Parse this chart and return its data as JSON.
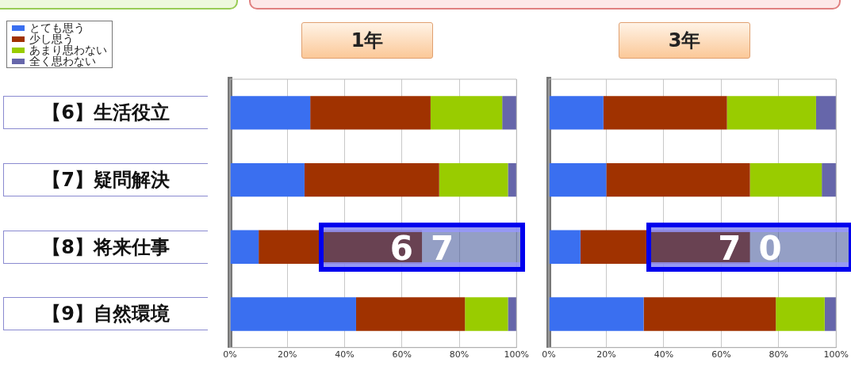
{
  "chart_data": [
    {
      "type": "bar",
      "title": "1年",
      "orientation": "horizontal",
      "stacked": true,
      "legend": "top left",
      "grid": "x",
      "categories": [
        "【6】生活役立",
        "【7】疑問解決",
        "【8】将来仕事",
        "【9】自然環境"
      ],
      "series": [
        {
          "name": "とても思う",
          "color": "#3a6ff0",
          "values": [
            28,
            26,
            10,
            44
          ]
        },
        {
          "name": "少し思う",
          "color": "#a03200",
          "values": [
            42,
            47,
            57,
            38
          ]
        },
        {
          "name": "あまり思わない",
          "color": "#99cc00",
          "values": [
            25,
            24,
            null,
            15
          ]
        },
        {
          "name": "全く思わない",
          "color": "#6666aa",
          "values": [
            5,
            3,
            null,
            3
          ]
        }
      ],
      "xlim": [
        0,
        100
      ],
      "xticks": [
        {
          "value": 0,
          "label": "0%"
        },
        {
          "value": 20,
          "label": "20%"
        },
        {
          "value": 40,
          "label": "40%"
        },
        {
          "value": 60,
          "label": "60%"
        },
        {
          "value": 80,
          "label": "80%"
        },
        {
          "value": 100,
          "label": "100%"
        }
      ],
      "annotations": [
        {
          "text": "67",
          "x": 67,
          "y": "【8】将来仕事"
        }
      ]
    },
    {
      "type": "bar",
      "title": "3年",
      "orientation": "horizontal",
      "stacked": true,
      "grid": "x",
      "tick_labels": "x",
      "categories": [
        "【6】生活役立",
        "【7】疑問解決",
        "【8】将来仕事",
        "【9】自然環境"
      ],
      "series": [
        {
          "color": "#3a6ff0",
          "values": [
            19,
            20,
            11,
            33
          ]
        },
        {
          "color": "#a03200",
          "values": [
            43,
            50,
            59,
            46
          ]
        },
        {
          "color": "#99cc00",
          "values": [
            31,
            25,
            null,
            17
          ]
        },
        {
          "color": "#6666aa",
          "values": [
            7,
            5,
            null,
            4
          ]
        }
      ],
      "xlim": [
        0,
        100
      ],
      "xticks": [
        {
          "value": 0,
          "label": "0%"
        },
        {
          "value": 20,
          "label": "20%"
        },
        {
          "value": 40,
          "label": "40%"
        },
        {
          "value": 60,
          "label": "60%"
        },
        {
          "value": 80,
          "label": "80%"
        },
        {
          "value": 100,
          "label": "100%"
        }
      ],
      "annotations": [
        {
          "text": "70",
          "x": 70,
          "y": "【8】将来仕事"
        }
      ]
    }
  ]
}
